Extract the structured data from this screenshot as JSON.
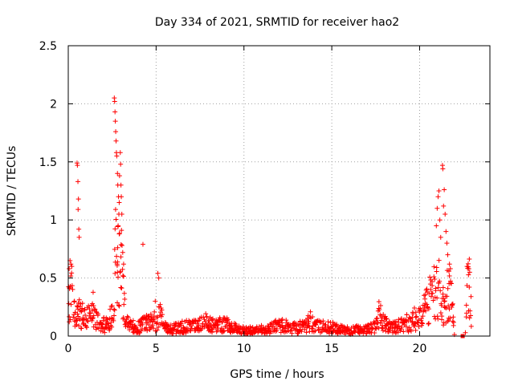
{
  "chart_data": {
    "type": "scatter",
    "title": "Day 334 of 2021, SRMTID for receiver hao2",
    "xlabel": "GPS time / hours",
    "ylabel": "SRMTID / TECUs",
    "xlim": [
      0,
      24
    ],
    "ylim": [
      0,
      2.5
    ],
    "grid": true,
    "marker": "+",
    "series_color": "#ff0000",
    "xticks": [
      0,
      5,
      10,
      15,
      20
    ],
    "xtick_labels": [
      "0",
      "5",
      "10",
      "15",
      "20"
    ],
    "yticks": [
      0,
      0.5,
      1,
      1.5,
      2,
      2.5
    ],
    "ytick_labels": [
      "0",
      "0.5",
      "1",
      "1.5",
      "2",
      "2.5"
    ],
    "series": [
      {
        "name": "SRMTID",
        "profile": [
          [
            0.0,
            0.28
          ],
          [
            0.1,
            0.55
          ],
          [
            0.2,
            0.45
          ],
          [
            0.3,
            0.3
          ],
          [
            0.4,
            0.2
          ],
          [
            0.5,
            0.22
          ],
          [
            0.6,
            0.32
          ],
          [
            0.8,
            0.22
          ],
          [
            1.0,
            0.18
          ],
          [
            1.2,
            0.22
          ],
          [
            1.4,
            0.3
          ],
          [
            1.6,
            0.18
          ],
          [
            1.8,
            0.14
          ],
          [
            2.0,
            0.12
          ],
          [
            2.3,
            0.12
          ],
          [
            2.55,
            0.3
          ],
          [
            2.7,
            0.9
          ],
          [
            2.9,
            0.7
          ],
          [
            3.0,
            0.8
          ],
          [
            3.1,
            0.45
          ],
          [
            3.3,
            0.15
          ],
          [
            3.5,
            0.1
          ],
          [
            4.0,
            0.1
          ],
          [
            4.5,
            0.14
          ],
          [
            5.0,
            0.16
          ],
          [
            5.2,
            0.3
          ],
          [
            5.4,
            0.1
          ],
          [
            6.0,
            0.08
          ],
          [
            6.5,
            0.1
          ],
          [
            7.0,
            0.1
          ],
          [
            7.5,
            0.12
          ],
          [
            7.8,
            0.15
          ],
          [
            8.0,
            0.12
          ],
          [
            8.5,
            0.12
          ],
          [
            9.0,
            0.12
          ],
          [
            9.5,
            0.08
          ],
          [
            10.0,
            0.06
          ],
          [
            10.5,
            0.06
          ],
          [
            11.0,
            0.07
          ],
          [
            11.5,
            0.08
          ],
          [
            12.0,
            0.12
          ],
          [
            12.5,
            0.1
          ],
          [
            13.0,
            0.08
          ],
          [
            13.5,
            0.12
          ],
          [
            13.8,
            0.16
          ],
          [
            14.0,
            0.1
          ],
          [
            14.5,
            0.1
          ],
          [
            15.0,
            0.09
          ],
          [
            15.5,
            0.07
          ],
          [
            16.0,
            0.06
          ],
          [
            16.5,
            0.07
          ],
          [
            17.0,
            0.07
          ],
          [
            17.5,
            0.1
          ],
          [
            17.7,
            0.25
          ],
          [
            17.9,
            0.14
          ],
          [
            18.2,
            0.12
          ],
          [
            18.5,
            0.1
          ],
          [
            19.0,
            0.12
          ],
          [
            19.5,
            0.15
          ],
          [
            19.8,
            0.2
          ],
          [
            20.2,
            0.25
          ],
          [
            20.5,
            0.38
          ],
          [
            20.8,
            0.45
          ],
          [
            21.0,
            0.6
          ],
          [
            21.2,
            0.4
          ],
          [
            21.4,
            0.3
          ],
          [
            21.6,
            0.45
          ],
          [
            21.8,
            0.42
          ],
          [
            22.0,
            0.0
          ],
          [
            22.6,
            0.0
          ],
          [
            22.7,
            0.53
          ],
          [
            22.9,
            0.53
          ],
          [
            22.95,
            0.0
          ],
          [
            24.0,
            0.0
          ]
        ],
        "spikes": [
          [
            0.5,
            1.49
          ],
          [
            0.52,
            1.47
          ],
          [
            0.55,
            1.33
          ],
          [
            0.58,
            1.18
          ],
          [
            0.56,
            1.09
          ],
          [
            0.6,
            0.92
          ],
          [
            0.62,
            0.85
          ],
          [
            0.1,
            0.65
          ],
          [
            0.15,
            0.62
          ],
          [
            0.2,
            0.6
          ],
          [
            0.05,
            0.58
          ],
          [
            2.62,
            2.05
          ],
          [
            2.64,
            2.02
          ],
          [
            2.66,
            1.93
          ],
          [
            2.68,
            1.85
          ],
          [
            2.7,
            1.76
          ],
          [
            2.72,
            1.68
          ],
          [
            2.74,
            1.58
          ],
          [
            2.76,
            1.55
          ],
          [
            2.8,
            1.4
          ],
          [
            2.82,
            1.3
          ],
          [
            2.86,
            1.2
          ],
          [
            2.9,
            1.15
          ],
          [
            2.92,
            1.38
          ],
          [
            2.96,
            1.58
          ],
          [
            2.98,
            1.48
          ],
          [
            3.0,
            1.3
          ],
          [
            3.02,
            1.2
          ],
          [
            3.05,
            1.05
          ],
          [
            2.88,
            1.05
          ],
          [
            2.84,
            0.95
          ],
          [
            2.9,
            0.88
          ],
          [
            3.06,
            0.78
          ],
          [
            3.1,
            0.72
          ],
          [
            3.15,
            0.62
          ],
          [
            2.78,
            0.62
          ],
          [
            2.8,
            0.55
          ],
          [
            4.25,
            0.79
          ],
          [
            5.1,
            0.54
          ],
          [
            5.15,
            0.5
          ],
          [
            4.95,
            0.3
          ],
          [
            20.95,
            0.95
          ],
          [
            21.0,
            1.1
          ],
          [
            21.05,
            1.2
          ],
          [
            21.1,
            1.25
          ],
          [
            21.15,
            1.0
          ],
          [
            21.2,
            0.85
          ],
          [
            21.3,
            1.47
          ],
          [
            21.32,
            1.44
          ],
          [
            21.4,
            1.26
          ],
          [
            21.36,
            1.12
          ],
          [
            21.45,
            1.05
          ],
          [
            21.5,
            0.9
          ],
          [
            21.55,
            0.8
          ],
          [
            21.6,
            0.7
          ],
          [
            21.7,
            0.62
          ],
          [
            21.75,
            0.58
          ],
          [
            22.7,
            0.6
          ],
          [
            22.8,
            0.58
          ],
          [
            22.85,
            0.55
          ]
        ],
        "isolated": [
          [
            22.45,
            0.0
          ]
        ]
      }
    ]
  }
}
